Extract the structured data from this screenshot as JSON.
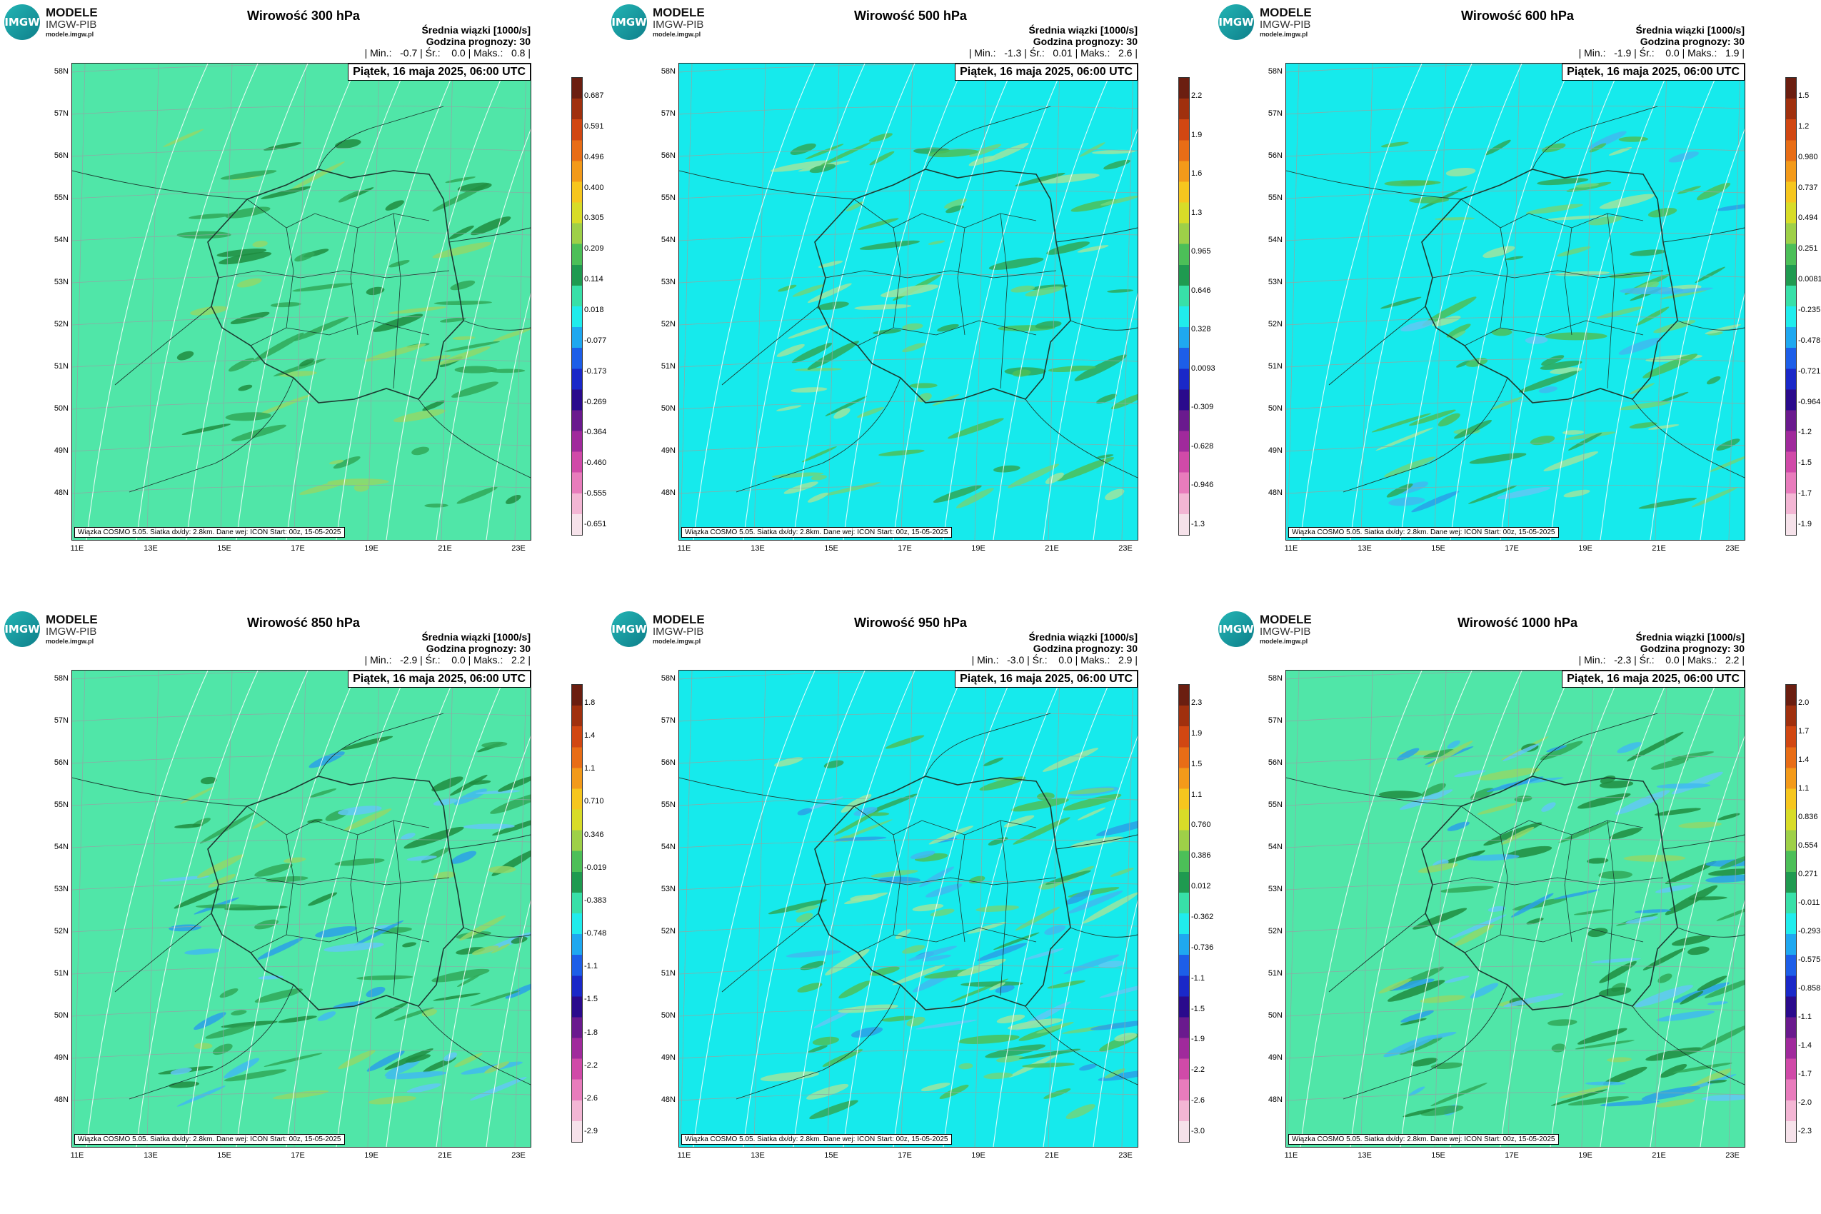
{
  "logo": {
    "name": "MODELE",
    "org": "IMGW-PIB",
    "url": "modele.imgw.pl",
    "badge": "IMGW"
  },
  "colors": {
    "field_green": "#50e6a8",
    "field_cyan": "#16eaec",
    "grid": "#8fa8a4",
    "contour": "#ffffff",
    "border": "#1b3a30"
  },
  "lat_labels": [
    "58N",
    "57N",
    "56N",
    "55N",
    "54N",
    "53N",
    "52N",
    "51N",
    "50N",
    "49N",
    "48N"
  ],
  "lon_labels": [
    "11E",
    "13E",
    "15E",
    "17E",
    "19E",
    "21E",
    "23E"
  ],
  "panels": [
    {
      "title": "Wirowość 300 hPa",
      "subtitle": "Średnia wiązki [1000/s]",
      "forecast": "Godzina prognozy: 30",
      "stats": "| Min.:   -0.7 | Śr.:    0.0 | Maks.:   0.8 |",
      "date": "Piątek, 16 maja 2025, 06:00 UTC",
      "footer": "Wiązka COSMO 5.05. Siatka dx/dy: 2.8km. Dane wej: ICON Start: 00z, 15-05-2025",
      "background": "green",
      "colorbar": [
        "0.687",
        "0.591",
        "0.496",
        "0.400",
        "0.305",
        "0.209",
        "0.114",
        "0.018",
        "-0.077",
        "-0.173",
        "-0.269",
        "-0.364",
        "-0.460",
        "-0.555",
        "-0.651"
      ]
    },
    {
      "title": "Wirowość 500 hPa",
      "subtitle": "Średnia wiązki [1000/s]",
      "forecast": "Godzina prognozy: 30",
      "stats": "| Min.:   -1.3 | Śr.:   0.01 | Maks.:   2.6 |",
      "date": "Piątek, 16 maja 2025, 06:00 UTC",
      "footer": "Wiązka COSMO 5.05. Siatka dx/dy: 2.8km. Dane wej: ICON Start: 00z, 15-05-2025",
      "background": "cyan",
      "colorbar": [
        "2.2",
        "1.9",
        "1.6",
        "1.3",
        "0.965",
        "0.646",
        "0.328",
        "0.0093",
        "-0.309",
        "-0.628",
        "-0.946",
        "-1.3"
      ]
    },
    {
      "title": "Wirowość 600 hPa",
      "subtitle": "Średnia wiązki [1000/s]",
      "forecast": "Godzina prognozy: 30",
      "stats": "| Min.:   -1.9 | Śr.:    0.0 | Maks.:   1.9 |",
      "date": "Piątek, 16 maja 2025, 06:00 UTC",
      "footer": "Wiązka COSMO 5.05. Siatka dx/dy: 2.8km. Dane wej: ICON Start: 00z, 15-05-2025",
      "background": "cyan",
      "colorbar": [
        "1.5",
        "1.2",
        "0.980",
        "0.737",
        "0.494",
        "0.251",
        "0.0081",
        "-0.235",
        "-0.478",
        "-0.721",
        "-0.964",
        "-1.2",
        "-1.5",
        "-1.7",
        "-1.9"
      ]
    },
    {
      "title": "Wirowość 850 hPa",
      "subtitle": "Średnia wiązki [1000/s]",
      "forecast": "Godzina prognozy: 30",
      "stats": "| Min.:   -2.9 | Śr.:    0.0 | Maks.:   2.2 |",
      "date": "Piątek, 16 maja 2025, 06:00 UTC",
      "footer": "Wiązka COSMO 5.05. Siatka dx/dy: 2.8km. Dane wej: ICON Start: 00z, 15-05-2025",
      "background": "green",
      "colorbar": [
        "1.8",
        "1.4",
        "1.1",
        "0.710",
        "0.346",
        "-0.019",
        "-0.383",
        "-0.748",
        "-1.1",
        "-1.5",
        "-1.8",
        "-2.2",
        "-2.6",
        "-2.9"
      ]
    },
    {
      "title": "Wirowość 950 hPa",
      "subtitle": "Średnia wiązki [1000/s]",
      "forecast": "Godzina prognozy: 30",
      "stats": "| Min.:   -3.0 | Śr.:    0.0 | Maks.:   2.9 |",
      "date": "Piątek, 16 maja 2025, 06:00 UTC",
      "footer": "Wiązka COSMO 5.05. Siatka dx/dy: 2.8km. Dane wej: ICON Start: 00z, 15-05-2025",
      "background": "cyan",
      "colorbar": [
        "2.3",
        "1.9",
        "1.5",
        "1.1",
        "0.760",
        "0.386",
        "0.012",
        "-0.362",
        "-0.736",
        "-1.1",
        "-1.5",
        "-1.9",
        "-2.2",
        "-2.6",
        "-3.0"
      ]
    },
    {
      "title": "Wirowość 1000 hPa",
      "subtitle": "Średnia wiązki [1000/s]",
      "forecast": "Godzina prognozy: 30",
      "stats": "| Min.:   -2.3 | Śr.:    0.0 | Maks.:   2.2 |",
      "date": "Piątek, 16 maja 2025, 06:00 UTC",
      "footer": "Wiązka COSMO 5.05. Siatka dx/dy: 2.8km. Dane wej: ICON Start: 00z, 15-05-2025",
      "background": "green",
      "colorbar": [
        "2.0",
        "1.7",
        "1.4",
        "1.1",
        "0.836",
        "0.554",
        "0.271",
        "-0.011",
        "-0.293",
        "-0.575",
        "-0.858",
        "-1.1",
        "-1.4",
        "-1.7",
        "-2.0",
        "-2.3"
      ]
    }
  ]
}
